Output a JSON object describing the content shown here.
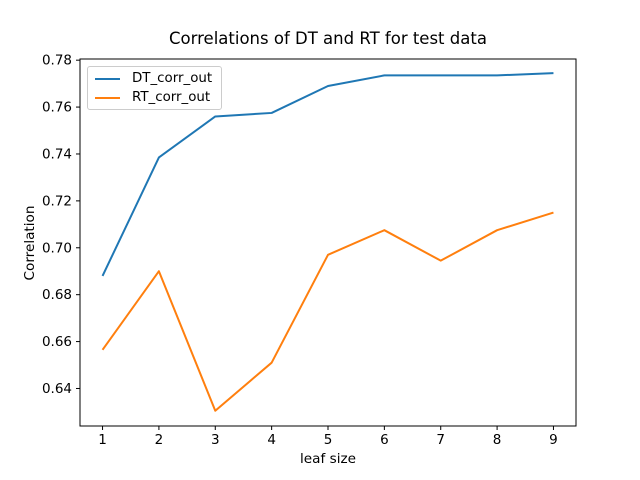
{
  "chart_data": {
    "type": "line",
    "title": "Correlations of DT and RT for test data",
    "xlabel": "leaf size",
    "ylabel": "Correlation",
    "x": [
      1,
      2,
      3,
      4,
      5,
      6,
      7,
      8,
      9
    ],
    "series": [
      {
        "name": "DT_corr_out",
        "color": "#1f77b4",
        "values": [
          0.688,
          0.7385,
          0.756,
          0.7575,
          0.769,
          0.7735,
          0.7735,
          0.7735,
          0.7745
        ]
      },
      {
        "name": "RT_corr_out",
        "color": "#ff7f0e",
        "values": [
          0.6565,
          0.69,
          0.6305,
          0.651,
          0.697,
          0.7075,
          0.6945,
          0.7075,
          0.715
        ]
      }
    ],
    "xlim": [
      0.6,
      9.4
    ],
    "ylim": [
      0.624,
      0.7805
    ],
    "xticks": [
      1,
      2,
      3,
      4,
      5,
      6,
      7,
      8,
      9
    ],
    "xtick_labels": [
      "1",
      "2",
      "3",
      "4",
      "5",
      "6",
      "7",
      "8",
      "9"
    ],
    "yticks": [
      0.64,
      0.66,
      0.68,
      0.7,
      0.72,
      0.74,
      0.76,
      0.78
    ],
    "ytick_labels": [
      "0.64",
      "0.66",
      "0.68",
      "0.70",
      "0.72",
      "0.74",
      "0.76",
      "0.78"
    ],
    "grid": false,
    "legend": {
      "position": "upper left",
      "entries": [
        "DT_corr_out",
        "RT_corr_out"
      ]
    },
    "background": "#ffffff",
    "axis_color": "#000000"
  }
}
